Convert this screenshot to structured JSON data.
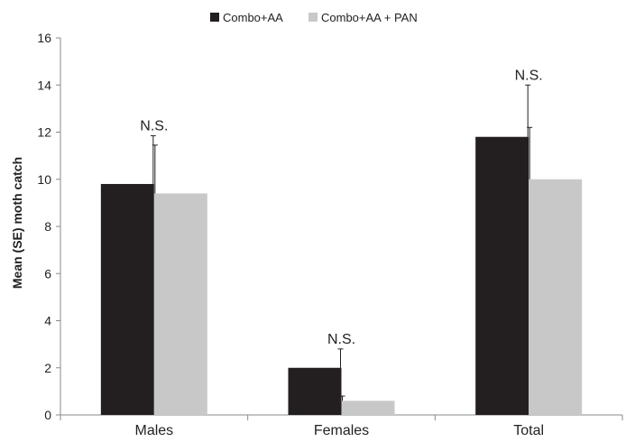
{
  "chart_data": {
    "type": "bar",
    "title": "",
    "xlabel": "",
    "ylabel": "Mean (SE) moth catch",
    "ylim": [
      0,
      16
    ],
    "yticks": [
      0,
      2,
      4,
      6,
      8,
      10,
      12,
      14,
      16
    ],
    "grid": false,
    "legend_position": "top-center",
    "categories": [
      "Males",
      "Females",
      "Total"
    ],
    "series": [
      {
        "name": "Combo+AA",
        "color": "#231f20",
        "values": [
          9.8,
          2.0,
          11.8
        ],
        "errors": [
          2.05,
          0.8,
          2.2
        ]
      },
      {
        "name": "Combo+AA + PAN",
        "color": "#c8c8c8",
        "values": [
          9.4,
          0.6,
          10.0
        ],
        "errors": [
          2.05,
          0.2,
          2.2
        ]
      }
    ],
    "annotations": [
      "N.S.",
      "N.S.",
      "N.S."
    ]
  }
}
